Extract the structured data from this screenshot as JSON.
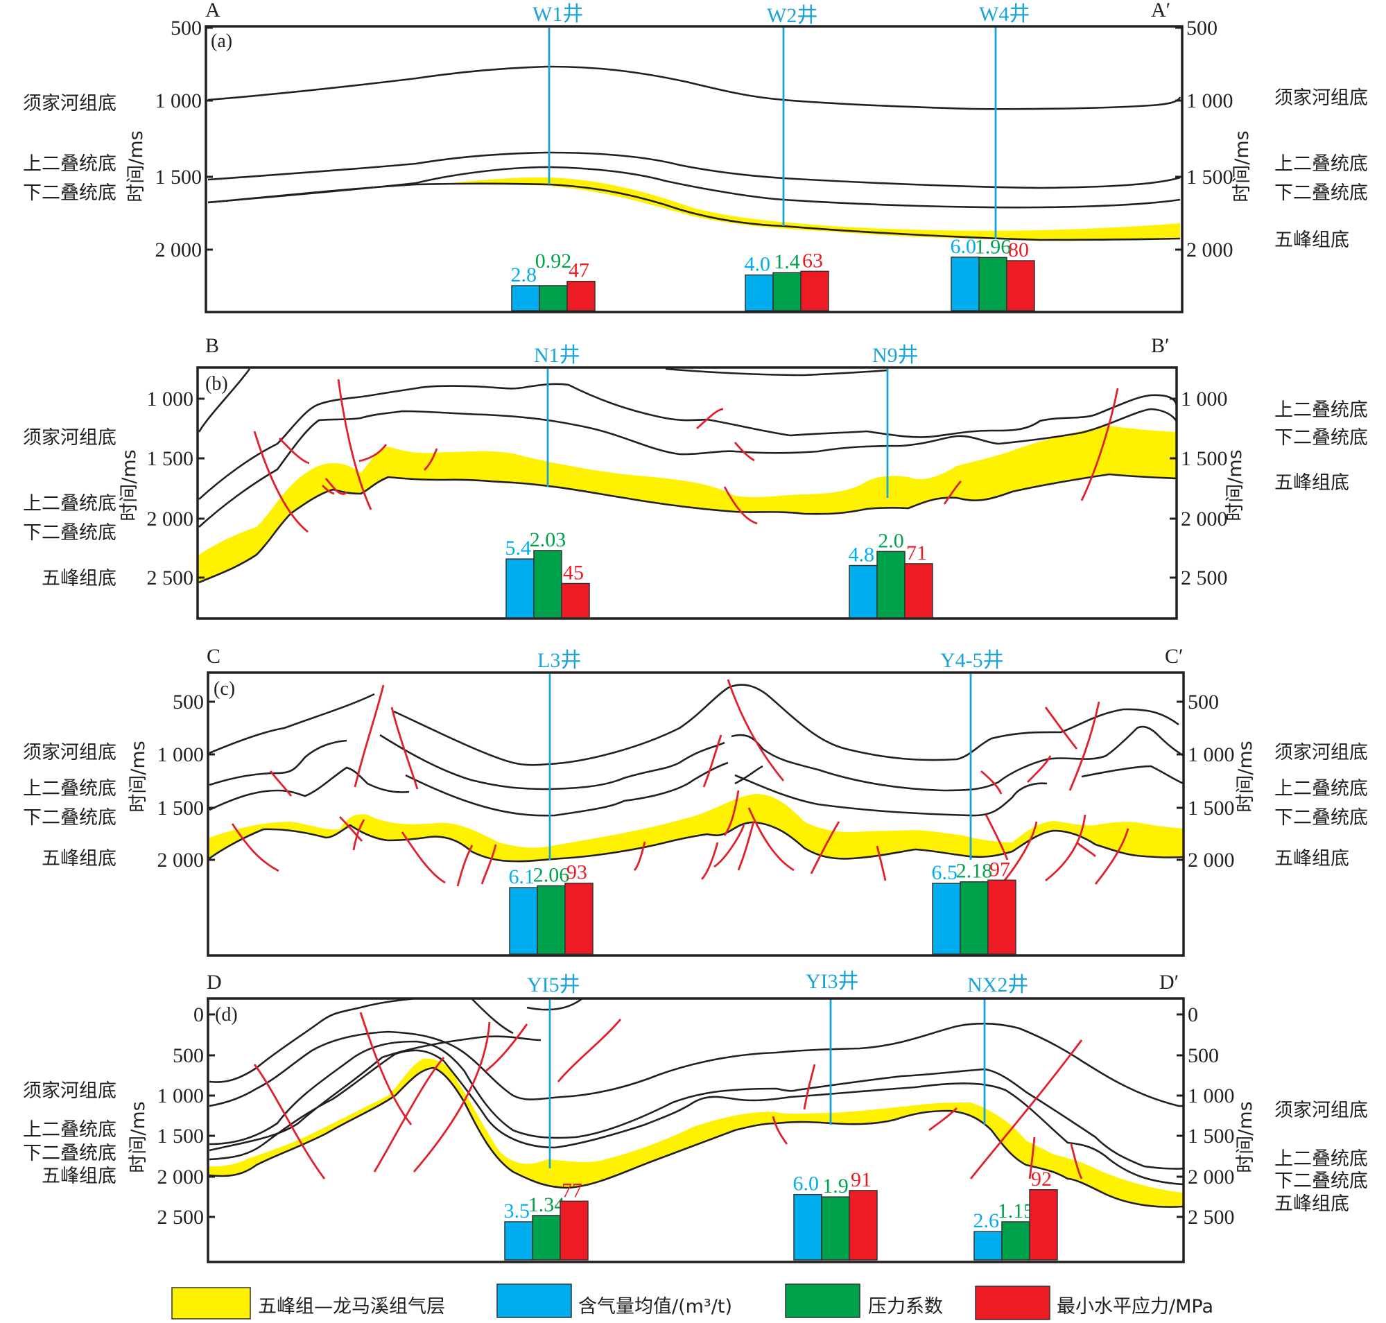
{
  "colors": {
    "gas_layer": "#fff200",
    "gas_content": "#00aeef",
    "pressure_coefficient": "#00a14b",
    "min_horizontal_stress": "#ed1c24",
    "well_line": "#1aa3d9",
    "fault": "#e0202a"
  },
  "axis_title": "时间/ms",
  "panels": [
    {
      "tag": "(a)",
      "start_label": "A",
      "end_label": "A′",
      "ticks_left": [
        "500",
        "1 000",
        "1 500",
        "2 000"
      ],
      "ticks_right": [
        "500",
        "1 000",
        "1 500",
        "2 000"
      ],
      "horizons_left": [
        "须家河组底",
        "上二叠统底",
        "下二叠统底"
      ],
      "horizons_right": [
        "须家河组底",
        "上二叠统底",
        "下二叠统底",
        "五峰组底"
      ],
      "wells": [
        {
          "name": "W1井",
          "gas_content": 2.8,
          "pressure_coefficient": 0.92,
          "min_horizontal_stress": 47,
          "labels": [
            "2.8",
            "0.92",
            "47"
          ]
        },
        {
          "name": "W2井",
          "gas_content": 4.0,
          "pressure_coefficient": 1.4,
          "min_horizontal_stress": 63,
          "labels": [
            "4.0",
            "1.4",
            "63"
          ]
        },
        {
          "name": "W4井",
          "gas_content": 6.0,
          "pressure_coefficient": 1.96,
          "min_horizontal_stress": 80,
          "labels": [
            "6.0",
            "1.96",
            "80"
          ]
        }
      ]
    },
    {
      "tag": "(b)",
      "start_label": "B",
      "end_label": "B′",
      "ticks_left": [
        "1 000",
        "1 500",
        "2 000",
        "2 500"
      ],
      "ticks_right": [
        "1 000",
        "1 500",
        "2 000",
        "2 500"
      ],
      "horizons_left": [
        "须家河组底",
        "上二叠统底",
        "下二叠统底",
        "五峰组底"
      ],
      "horizons_right": [
        "上二叠统底",
        "下二叠统底",
        "五峰组底"
      ],
      "wells": [
        {
          "name": "N1井",
          "gas_content": 5.4,
          "pressure_coefficient": 2.03,
          "min_horizontal_stress": 45,
          "labels": [
            "5.4",
            "2.03",
            "45"
          ]
        },
        {
          "name": "N9井",
          "gas_content": 4.8,
          "pressure_coefficient": 2.0,
          "min_horizontal_stress": 71,
          "labels": [
            "4.8",
            "2.0",
            "71"
          ]
        }
      ]
    },
    {
      "tag": "(c)",
      "start_label": "C",
      "end_label": "C′",
      "ticks_left": [
        "500",
        "1 000",
        "1 500",
        "2 000"
      ],
      "ticks_right": [
        "500",
        "1 000",
        "1 500",
        "2 000"
      ],
      "horizons_left": [
        "须家河组底",
        "上二叠统底",
        "下二叠统底",
        "五峰组底"
      ],
      "horizons_right": [
        "须家河组底",
        "上二叠统底",
        "下二叠统底",
        "五峰组底"
      ],
      "wells": [
        {
          "name": "L3井",
          "gas_content": 6.1,
          "pressure_coefficient": 2.06,
          "min_horizontal_stress": 93,
          "labels": [
            "6.1",
            "2.06",
            "93"
          ]
        },
        {
          "name": "Y4-5井",
          "gas_content": 6.5,
          "pressure_coefficient": 2.18,
          "min_horizontal_stress": 97,
          "labels": [
            "6.5",
            "2.18",
            "97"
          ]
        }
      ]
    },
    {
      "tag": "(d)",
      "start_label": "D",
      "end_label": "D′",
      "ticks_left": [
        "0",
        "500",
        "1 000",
        "1 500",
        "2 000",
        "2 500"
      ],
      "ticks_right": [
        "0",
        "500",
        "1 000",
        "1 500",
        "2 000",
        "2 500"
      ],
      "horizons_left": [
        "须家河组底",
        "上二叠统底",
        "下二叠统底",
        "五峰组底"
      ],
      "horizons_right": [
        "须家河组底",
        "上二叠统底",
        "下二叠统底",
        "五峰组底"
      ],
      "wells": [
        {
          "name": "YI5井",
          "gas_content": 3.5,
          "pressure_coefficient": 1.34,
          "min_horizontal_stress": 77,
          "labels": [
            "3.5",
            "1.34",
            "77"
          ]
        },
        {
          "name": "YI3井",
          "gas_content": 6.0,
          "pressure_coefficient": 1.9,
          "min_horizontal_stress": 91,
          "labels": [
            "6.0",
            "1.9",
            "91"
          ]
        },
        {
          "name": "NX2井",
          "gas_content": 2.6,
          "pressure_coefficient": 1.15,
          "min_horizontal_stress": 92,
          "labels": [
            "2.6",
            "1.15",
            "92"
          ]
        }
      ]
    }
  ],
  "legend": [
    {
      "label": "五峰组—龙马溪组气层",
      "color_key": "gas_layer"
    },
    {
      "label": "含气量均值/(m³/t)",
      "color_key": "gas_content"
    },
    {
      "label": "压力系数",
      "color_key": "pressure_coefficient"
    },
    {
      "label": "最小水平应力/MPa",
      "color_key": "min_horizontal_stress"
    }
  ]
}
